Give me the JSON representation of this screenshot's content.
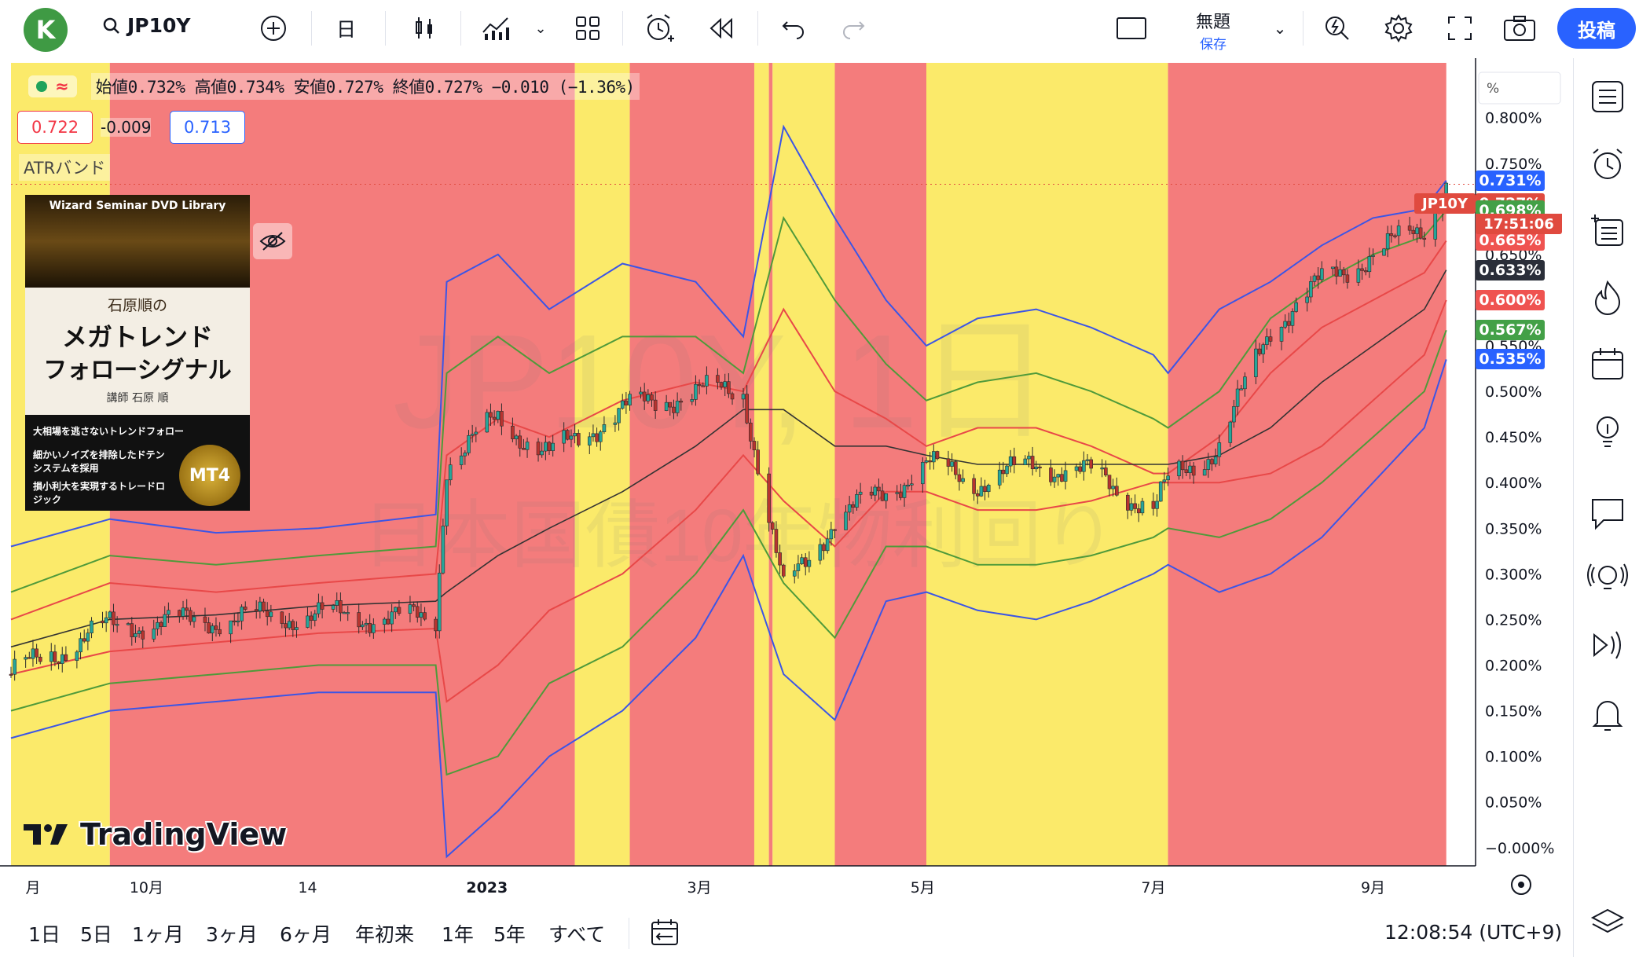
{
  "toolbar": {
    "avatar_letter": "K",
    "symbol": "JP10Y",
    "timeframe": "日",
    "layout_name": "無題",
    "layout_save": "保存",
    "publish": "投稿"
  },
  "legend": {
    "ohlc": "始値0.732% 高値0.734% 安値0.727% 終値0.727% −0.010 (−1.36%)",
    "bid": "0.722",
    "spread": "-0.009",
    "ask": "0.713",
    "indicator": "ATRバンド"
  },
  "ad": {
    "library": "Wizard Seminar DVD Library",
    "author_top": "石原順の",
    "title_line1": "メガトレンド",
    "title_line2": "フォローシグナル",
    "author": "講師 石原 順",
    "bullet1": "大相場を逃さないトレンドフォロー",
    "bullet2": "細かいノイズを排除したドテンシステムを採用",
    "bullet3": "損小利大を実現するトレードロジック",
    "mt4": "MT4"
  },
  "watermark": {
    "logo_text": "TradingView",
    "symbol_ghost": "JP10Y, 1日",
    "desc_ghost": "日本国債10年物利回り"
  },
  "price_axis": {
    "unit": "%",
    "ticks": [
      "0.800%",
      "0.750%",
      "0.700%",
      "0.650%",
      "0.600%",
      "0.550%",
      "0.500%",
      "0.450%",
      "0.400%",
      "0.350%",
      "0.300%",
      "0.250%",
      "0.200%",
      "0.150%",
      "0.100%",
      "0.050%",
      "−0.000%"
    ]
  },
  "time_axis": {
    "labels": [
      "月",
      "10月",
      "14",
      "2023",
      "3月",
      "5月",
      "7月",
      "9月"
    ]
  },
  "price_tags": [
    {
      "label": "0.731%",
      "color": "#2962ff"
    },
    {
      "label": "0.727%",
      "color": "#e04a3f",
      "time": "17:51:06",
      "symbol": "JP10Y"
    },
    {
      "label": "0.698%",
      "color": "#43a047"
    },
    {
      "label": "0.665%",
      "color": "#ef5350"
    },
    {
      "label": "0.633%",
      "color": "#2a2e39"
    },
    {
      "label": "0.600%",
      "color": "#ef5350"
    },
    {
      "label": "0.567%",
      "color": "#43a047"
    },
    {
      "label": "0.535%",
      "color": "#2962ff"
    }
  ],
  "bottom": {
    "ranges": [
      "1日",
      "5日",
      "1ヶ月",
      "3ヶ月",
      "6ヶ月",
      "年初来",
      "1年",
      "5年",
      "すべて"
    ],
    "clock": "12:08:54 (UTC+9)"
  },
  "colors": {
    "red_zone": "#f47c7c",
    "yellow_zone": "#fbea6a",
    "blue_band": "#3b55e6",
    "green_band": "#4f9a3a",
    "red_band": "#e84848",
    "mid_line": "#333333"
  },
  "chart_data": {
    "type": "line",
    "title": "",
    "ylabel": "%",
    "ylim": [
      -0.02,
      0.86
    ],
    "x_range": [
      "2022-08-25",
      "2023-09-29"
    ],
    "zones": [
      {
        "from": "2022-08-25",
        "to": "2022-09-21",
        "color": "yellow"
      },
      {
        "from": "2022-09-21",
        "to": "2023-01-26",
        "color": "red"
      },
      {
        "from": "2023-01-26",
        "to": "2023-02-10",
        "color": "yellow"
      },
      {
        "from": "2023-02-10",
        "to": "2023-03-16",
        "color": "red"
      },
      {
        "from": "2023-03-16",
        "to": "2023-03-20",
        "color": "yellow"
      },
      {
        "from": "2023-03-20",
        "to": "2023-03-21",
        "color": "red"
      },
      {
        "from": "2023-03-21",
        "to": "2023-04-07",
        "color": "yellow"
      },
      {
        "from": "2023-04-07",
        "to": "2023-05-02",
        "color": "red"
      },
      {
        "from": "2023-05-02",
        "to": "2023-07-07",
        "color": "yellow"
      },
      {
        "from": "2023-07-07",
        "to": "2023-09-21",
        "color": "red"
      }
    ],
    "x": [
      "2022-08-25",
      "2022-09-21",
      "2022-10-20",
      "2022-11-17",
      "2022-12-19",
      "2022-12-22",
      "2023-01-05",
      "2023-01-19",
      "2023-02-08",
      "2023-02-28",
      "2023-03-13",
      "2023-03-24",
      "2023-04-07",
      "2023-04-21",
      "2023-05-02",
      "2023-05-16",
      "2023-06-01",
      "2023-06-16",
      "2023-07-03",
      "2023-07-07",
      "2023-07-21",
      "2023-08-04",
      "2023-08-18",
      "2023-09-01",
      "2023-09-15",
      "2023-09-21"
    ],
    "series": [
      {
        "values": [
          0.19,
          0.243,
          0.25,
          0.255,
          0.25,
          0.42,
          0.47,
          0.43,
          0.48,
          0.5,
          0.5,
          0.28,
          0.36,
          0.39,
          0.42,
          0.4,
          0.42,
          0.41,
          0.37,
          0.4,
          0.44,
          0.57,
          0.62,
          0.65,
          0.68,
          0.727
        ]
      },
      {
        "values": [
          0.33,
          0.36,
          0.345,
          0.35,
          0.365,
          0.62,
          0.65,
          0.59,
          0.64,
          0.62,
          0.56,
          0.79,
          0.69,
          0.6,
          0.55,
          0.58,
          0.59,
          0.57,
          0.54,
          0.52,
          0.59,
          0.62,
          0.66,
          0.69,
          0.7,
          0.731
        ]
      },
      {
        "values": [
          0.28,
          0.32,
          0.31,
          0.32,
          0.33,
          0.52,
          0.56,
          0.52,
          0.56,
          0.56,
          0.52,
          0.69,
          0.6,
          0.53,
          0.49,
          0.51,
          0.52,
          0.5,
          0.47,
          0.46,
          0.5,
          0.58,
          0.62,
          0.65,
          0.67,
          0.698
        ]
      },
      {
        "values": [
          0.25,
          0.29,
          0.28,
          0.29,
          0.3,
          0.43,
          0.47,
          0.45,
          0.49,
          0.51,
          0.5,
          0.59,
          0.5,
          0.47,
          0.44,
          0.46,
          0.46,
          0.44,
          0.41,
          0.41,
          0.45,
          0.52,
          0.57,
          0.6,
          0.63,
          0.665
        ]
      },
      {
        "values": [
          0.22,
          0.25,
          0.255,
          0.265,
          0.27,
          0.28,
          0.32,
          0.35,
          0.39,
          0.44,
          0.48,
          0.48,
          0.44,
          0.44,
          0.43,
          0.42,
          0.42,
          0.42,
          0.42,
          0.42,
          0.43,
          0.46,
          0.51,
          0.55,
          0.59,
          0.633
        ]
      },
      {
        "values": [
          0.19,
          0.215,
          0.225,
          0.235,
          0.24,
          0.16,
          0.2,
          0.26,
          0.3,
          0.37,
          0.43,
          0.38,
          0.33,
          0.39,
          0.39,
          0.37,
          0.37,
          0.38,
          0.4,
          0.4,
          0.4,
          0.41,
          0.44,
          0.49,
          0.54,
          0.6
        ]
      },
      {
        "values": [
          0.15,
          0.18,
          0.19,
          0.2,
          0.2,
          0.08,
          0.1,
          0.18,
          0.22,
          0.3,
          0.37,
          0.29,
          0.23,
          0.33,
          0.33,
          0.31,
          0.31,
          0.32,
          0.34,
          0.35,
          0.34,
          0.36,
          0.4,
          0.45,
          0.5,
          0.567
        ]
      },
      {
        "values": [
          0.12,
          0.15,
          0.16,
          0.17,
          0.17,
          -0.01,
          0.04,
          0.1,
          0.15,
          0.23,
          0.32,
          0.19,
          0.14,
          0.27,
          0.28,
          0.26,
          0.25,
          0.27,
          0.3,
          0.31,
          0.28,
          0.3,
          0.34,
          0.4,
          0.46,
          0.535
        ]
      }
    ]
  }
}
